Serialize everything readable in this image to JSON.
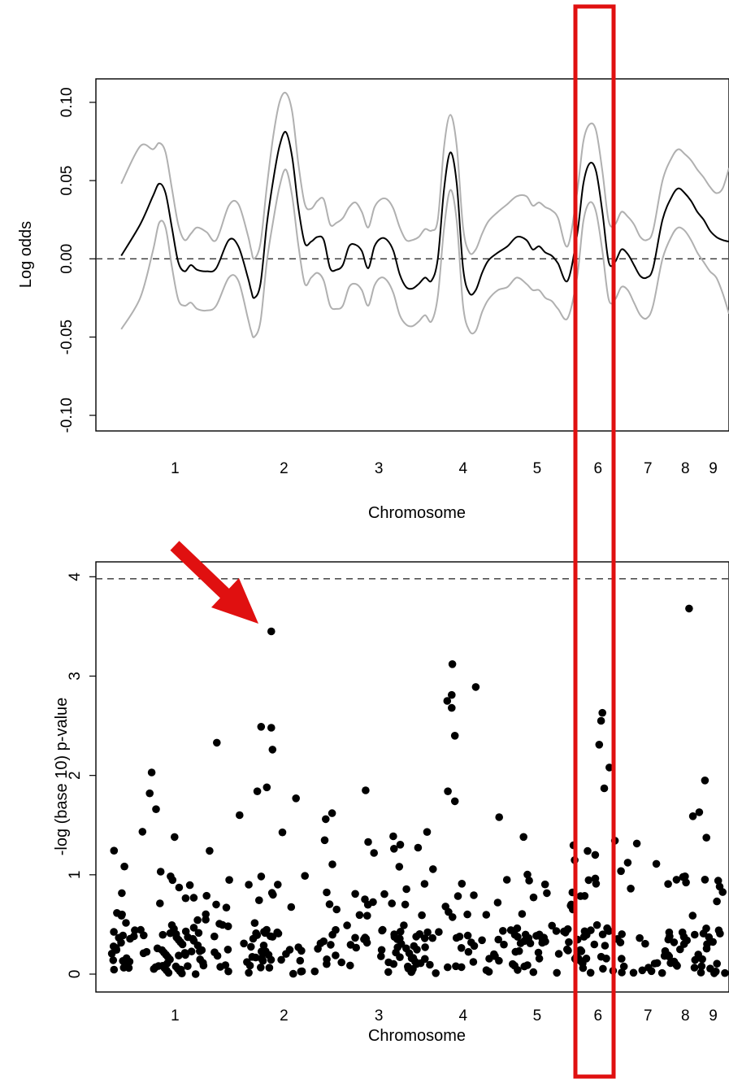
{
  "chart_data": [
    {
      "type": "line",
      "title": "",
      "xlabel": "Chromosome",
      "ylabel": "Log odds",
      "ylim": [
        -0.11,
        0.115
      ],
      "yticks": [
        -0.1,
        -0.05,
        0.0,
        0.05,
        0.1
      ],
      "ytick_labels": [
        "-0.10",
        "-0.05",
        "0.00",
        "0.05",
        "0.10"
      ],
      "xlim": [
        0,
        1
      ],
      "chromosomes": [
        {
          "label": "1",
          "center": 0.125
        },
        {
          "label": "2",
          "center": 0.297
        },
        {
          "label": "3",
          "center": 0.447
        },
        {
          "label": "4",
          "center": 0.58
        },
        {
          "label": "5",
          "center": 0.697
        },
        {
          "label": "6",
          "center": 0.793
        },
        {
          "label": "7",
          "center": 0.872
        },
        {
          "label": "8",
          "center": 0.931
        },
        {
          "label": "9",
          "center": 0.975
        }
      ],
      "reference_line": 0.0,
      "x": [
        0.04,
        0.07,
        0.09,
        0.1,
        0.11,
        0.12,
        0.13,
        0.14,
        0.15,
        0.16,
        0.175,
        0.19,
        0.21,
        0.225,
        0.24,
        0.245,
        0.25,
        0.26,
        0.27,
        0.28,
        0.29,
        0.3,
        0.31,
        0.32,
        0.33,
        0.34,
        0.35,
        0.36,
        0.37,
        0.38,
        0.39,
        0.4,
        0.41,
        0.42,
        0.43,
        0.44,
        0.45,
        0.46,
        0.47,
        0.48,
        0.49,
        0.5,
        0.51,
        0.52,
        0.53,
        0.54,
        0.55,
        0.56,
        0.57,
        0.58,
        0.59,
        0.6,
        0.61,
        0.62,
        0.635,
        0.65,
        0.665,
        0.68,
        0.69,
        0.7,
        0.71,
        0.72,
        0.73,
        0.745,
        0.76,
        0.77,
        0.78,
        0.79,
        0.8,
        0.81,
        0.82,
        0.83,
        0.84,
        0.85,
        0.86,
        0.87,
        0.88,
        0.895,
        0.91,
        0.92,
        0.93,
        0.94,
        0.95,
        0.96,
        0.97,
        0.98,
        0.99,
        1.0
      ],
      "series": [
        {
          "role": "estimate",
          "color": "#000000",
          "values": [
            0.002,
            0.022,
            0.04,
            0.048,
            0.042,
            0.02,
            -0.002,
            -0.008,
            -0.004,
            -0.007,
            -0.008,
            -0.006,
            0.012,
            0.008,
            -0.012,
            -0.02,
            -0.025,
            -0.016,
            0.022,
            0.05,
            0.072,
            0.081,
            0.065,
            0.032,
            0.01,
            0.011,
            0.014,
            0.012,
            -0.006,
            -0.007,
            -0.004,
            0.008,
            0.009,
            0.005,
            -0.006,
            0.008,
            0.013,
            0.012,
            0.005,
            -0.01,
            -0.018,
            -0.019,
            -0.016,
            -0.012,
            -0.014,
            0.0,
            0.045,
            0.068,
            0.048,
            -0.006,
            -0.022,
            -0.02,
            -0.009,
            -0.001,
            0.004,
            0.008,
            0.014,
            0.012,
            0.006,
            0.008,
            0.004,
            0.002,
            -0.003,
            -0.014,
            0.015,
            0.048,
            0.061,
            0.056,
            0.03,
            -0.002,
            -0.002,
            0.006,
            0.003,
            -0.004,
            -0.011,
            -0.012,
            -0.006,
            0.025,
            0.04,
            0.045,
            0.042,
            0.037,
            0.03,
            0.025,
            0.018,
            0.014,
            0.012,
            0.011
          ]
        },
        {
          "role": "upper-band",
          "color": "#b0b0b0",
          "values": [
            0.048,
            0.072,
            0.07,
            0.074,
            0.068,
            0.045,
            0.022,
            0.012,
            0.016,
            0.02,
            0.017,
            0.012,
            0.034,
            0.035,
            0.015,
            0.006,
            0.0,
            0.01,
            0.046,
            0.078,
            0.1,
            0.106,
            0.094,
            0.06,
            0.035,
            0.032,
            0.037,
            0.038,
            0.022,
            0.023,
            0.026,
            0.033,
            0.036,
            0.03,
            0.02,
            0.033,
            0.038,
            0.038,
            0.032,
            0.02,
            0.012,
            0.012,
            0.014,
            0.019,
            0.018,
            0.025,
            0.072,
            0.092,
            0.072,
            0.02,
            0.004,
            0.006,
            0.016,
            0.024,
            0.03,
            0.035,
            0.04,
            0.04,
            0.034,
            0.036,
            0.033,
            0.031,
            0.026,
            0.008,
            0.042,
            0.075,
            0.086,
            0.082,
            0.056,
            0.024,
            0.022,
            0.03,
            0.027,
            0.022,
            0.014,
            0.012,
            0.018,
            0.05,
            0.065,
            0.07,
            0.067,
            0.063,
            0.057,
            0.052,
            0.046,
            0.042,
            0.045,
            0.058
          ]
        },
        {
          "role": "lower-band",
          "color": "#b0b0b0",
          "values": [
            -0.045,
            -0.025,
            0.005,
            0.023,
            0.02,
            -0.005,
            -0.026,
            -0.03,
            -0.028,
            -0.032,
            -0.033,
            -0.03,
            -0.012,
            -0.014,
            -0.038,
            -0.046,
            -0.05,
            -0.04,
            -0.002,
            0.024,
            0.046,
            0.057,
            0.04,
            0.008,
            -0.016,
            -0.012,
            -0.009,
            -0.014,
            -0.03,
            -0.032,
            -0.03,
            -0.018,
            -0.016,
            -0.02,
            -0.03,
            -0.017,
            -0.012,
            -0.014,
            -0.022,
            -0.036,
            -0.042,
            -0.043,
            -0.04,
            -0.036,
            -0.04,
            -0.024,
            0.02,
            0.044,
            0.024,
            -0.03,
            -0.046,
            -0.046,
            -0.034,
            -0.026,
            -0.02,
            -0.018,
            -0.012,
            -0.016,
            -0.02,
            -0.02,
            -0.025,
            -0.027,
            -0.032,
            -0.038,
            -0.012,
            0.024,
            0.036,
            0.03,
            0.005,
            -0.026,
            -0.026,
            -0.018,
            -0.02,
            -0.028,
            -0.036,
            -0.038,
            -0.03,
            0.0,
            0.015,
            0.02,
            0.018,
            0.012,
            0.004,
            -0.002,
            -0.008,
            -0.012,
            -0.022,
            -0.035
          ]
        }
      ]
    },
    {
      "type": "scatter",
      "title": "",
      "xlabel": "Chromosome",
      "ylabel": "-log (base 10) p-value",
      "ylim": [
        -0.18,
        4.15
      ],
      "yticks": [
        0,
        1,
        2,
        3,
        4
      ],
      "ytick_labels": [
        "0",
        "1",
        "2",
        "3",
        "4"
      ],
      "xlim": [
        0,
        1
      ],
      "chromosomes": [
        {
          "label": "1",
          "center": 0.125
        },
        {
          "label": "2",
          "center": 0.297
        },
        {
          "label": "3",
          "center": 0.447
        },
        {
          "label": "4",
          "center": 0.58
        },
        {
          "label": "5",
          "center": 0.697
        },
        {
          "label": "6",
          "center": 0.793
        },
        {
          "label": "7",
          "center": 0.872
        },
        {
          "label": "8",
          "center": 0.931
        },
        {
          "label": "9",
          "center": 0.975
        }
      ],
      "threshold_line": 3.98,
      "highlighted_points": [
        {
          "x": 0.277,
          "y": 2.48
        },
        {
          "x": 0.279,
          "y": 2.26
        },
        {
          "x": 0.277,
          "y": 3.45
        },
        {
          "x": 0.937,
          "y": 3.68
        },
        {
          "x": 0.563,
          "y": 3.12
        },
        {
          "x": 0.562,
          "y": 2.81
        },
        {
          "x": 0.562,
          "y": 2.68
        },
        {
          "x": 0.567,
          "y": 2.4
        },
        {
          "x": 0.555,
          "y": 2.75
        },
        {
          "x": 0.6,
          "y": 2.89
        },
        {
          "x": 0.567,
          "y": 1.74
        },
        {
          "x": 0.556,
          "y": 1.84
        },
        {
          "x": 0.088,
          "y": 2.03
        },
        {
          "x": 0.085,
          "y": 1.82
        },
        {
          "x": 0.095,
          "y": 1.66
        },
        {
          "x": 0.191,
          "y": 2.33
        },
        {
          "x": 0.261,
          "y": 2.49
        },
        {
          "x": 0.27,
          "y": 1.88
        },
        {
          "x": 0.255,
          "y": 1.84
        },
        {
          "x": 0.227,
          "y": 1.6
        },
        {
          "x": 0.316,
          "y": 1.77
        },
        {
          "x": 0.426,
          "y": 1.85
        },
        {
          "x": 0.43,
          "y": 1.33
        },
        {
          "x": 0.363,
          "y": 1.56
        },
        {
          "x": 0.373,
          "y": 1.62
        },
        {
          "x": 0.637,
          "y": 1.58
        },
        {
          "x": 0.798,
          "y": 2.55
        },
        {
          "x": 0.8,
          "y": 2.63
        },
        {
          "x": 0.795,
          "y": 2.31
        },
        {
          "x": 0.811,
          "y": 2.08
        },
        {
          "x": 0.803,
          "y": 1.87
        },
        {
          "x": 0.943,
          "y": 1.59
        },
        {
          "x": 0.953,
          "y": 1.63
        },
        {
          "x": 0.962,
          "y": 1.95
        }
      ],
      "n_background_points": 420,
      "point_color": "#000000"
    }
  ],
  "annotations": {
    "highlight_box": {
      "label": "6",
      "color": "#e01010"
    },
    "arrow": {
      "color": "#e01010",
      "target": {
        "x": 0.277,
        "y": 3.45
      }
    }
  }
}
